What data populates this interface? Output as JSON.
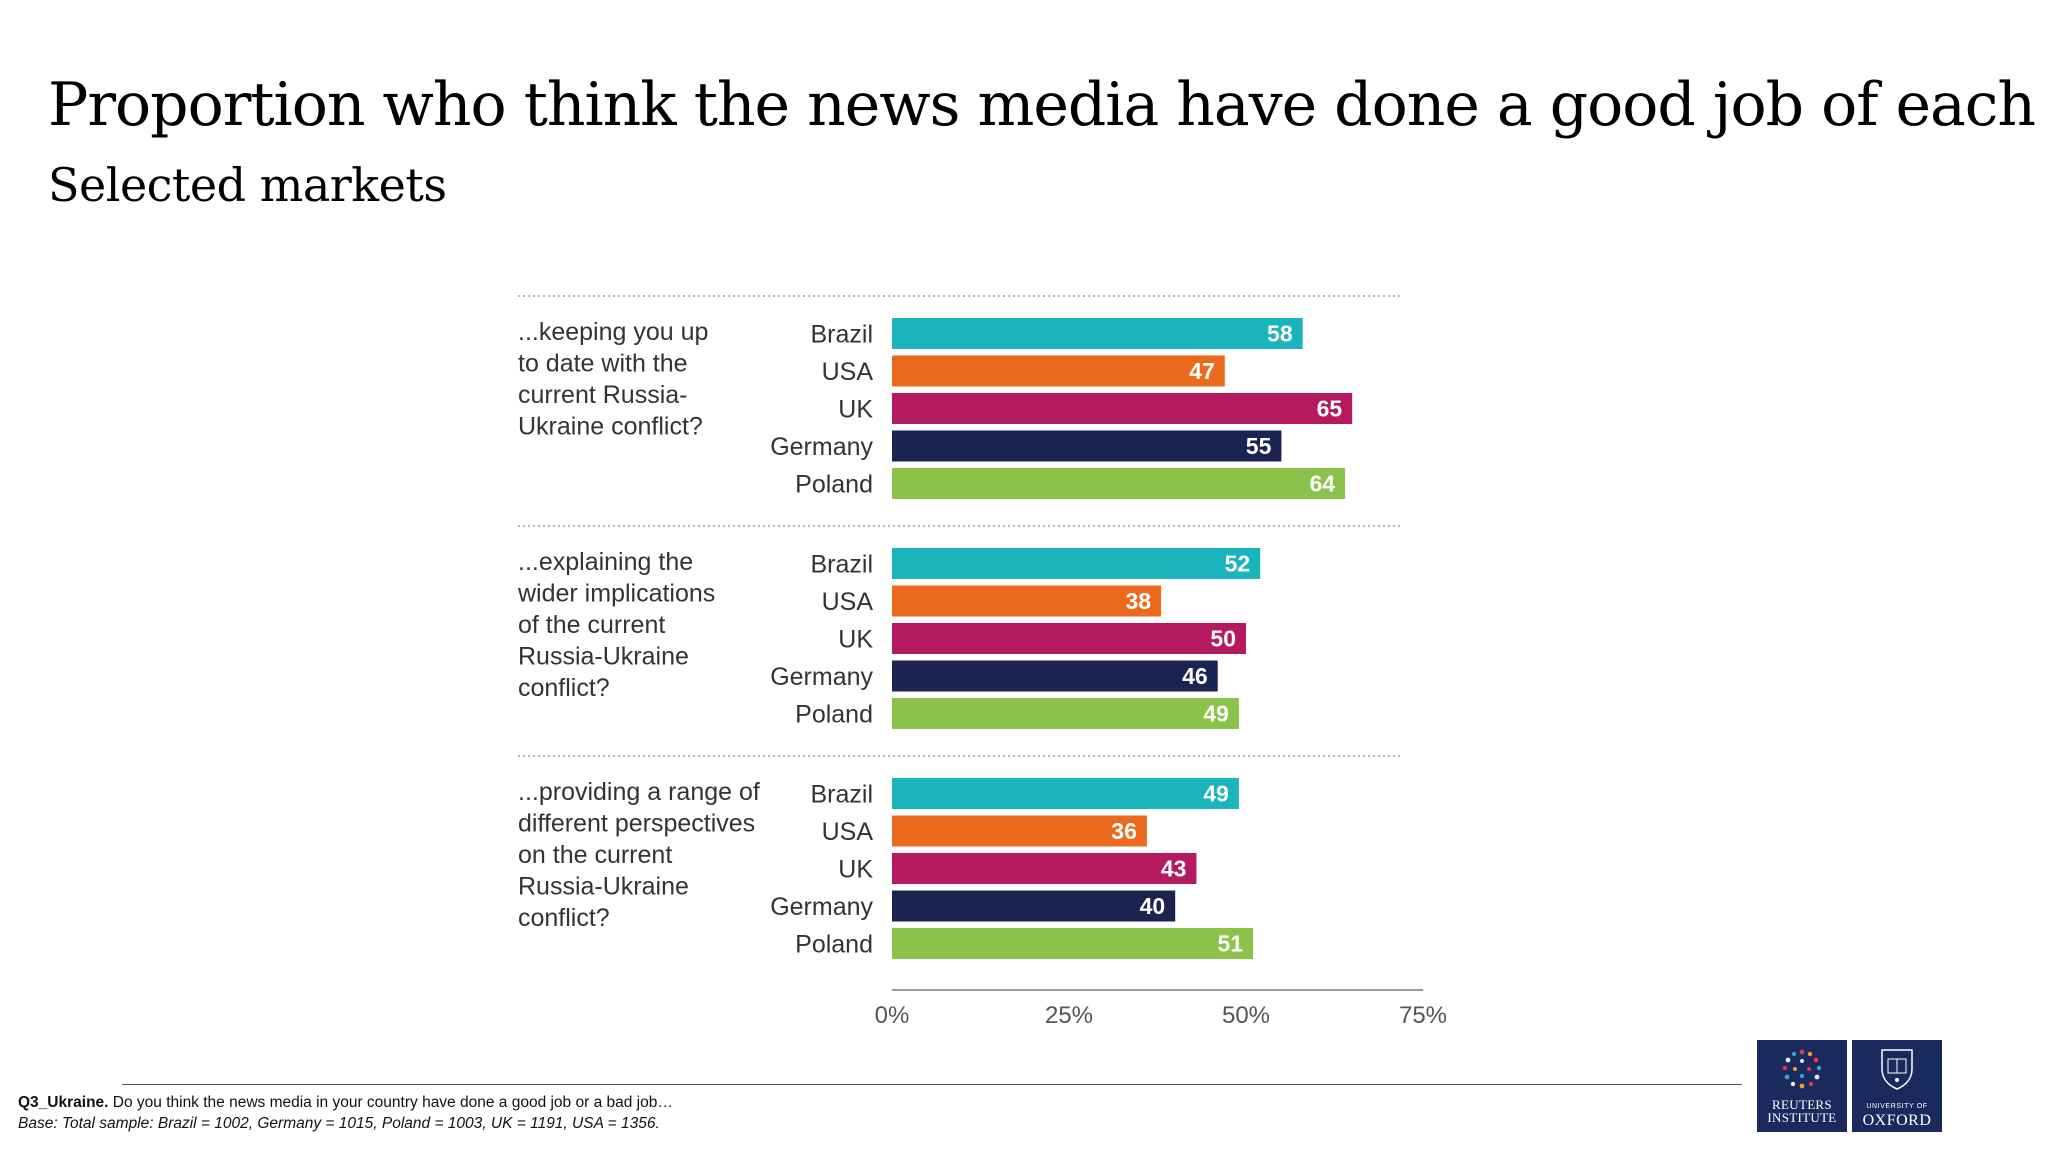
{
  "title": "Proportion who think the news media have done a good job of each",
  "subtitle": "Selected markets",
  "chart_data": {
    "type": "bar",
    "orientation": "horizontal",
    "categories": [
      "Brazil",
      "USA",
      "UK",
      "Germany",
      "Poland"
    ],
    "groups": [
      {
        "label": "...keeping you up to date with the current Russia-Ukraine conflict?",
        "label_lines": [
          "...keeping you up",
          "to date with the",
          "current Russia-",
          "Ukraine conflict?"
        ],
        "values": [
          58,
          47,
          65,
          55,
          64
        ]
      },
      {
        "label": "...explaining the wider implications of the current Russia-Ukraine conflict?",
        "label_lines": [
          "...explaining the",
          "wider implications",
          "of the current",
          "Russia-Ukraine",
          "conflict?"
        ],
        "values": [
          52,
          38,
          50,
          46,
          49
        ]
      },
      {
        "label": "...providing a range of different perspectives on the current Russia-Ukraine conflict?",
        "label_lines": [
          "...providing a range of",
          "different perspectives",
          "on the current",
          "Russia-Ukraine",
          "conflict?"
        ],
        "values": [
          49,
          36,
          43,
          40,
          51
        ]
      }
    ],
    "colors": [
      "#1bb3bc",
      "#ec6a1e",
      "#b5195f",
      "#1b2350",
      "#8bc34a"
    ],
    "xlim": [
      0,
      75
    ],
    "xticks": [
      0,
      25,
      50,
      75
    ],
    "xtick_labels": [
      "0%",
      "25%",
      "50%",
      "75%"
    ],
    "grid": false,
    "legend": "none"
  },
  "footnote": {
    "question_id": "Q3_Ukraine.",
    "question": " Do you think the news media in your country have done a good job or a bad job…",
    "base": "Base: Total sample: Brazil = 1002, Germany = 1015, Poland = 1003, UK = 1191, USA = 1356."
  },
  "logos": {
    "reuters_line1": "REUTERS",
    "reuters_line2": "INSTITUTE",
    "oxford_small": "UNIVERSITY OF",
    "oxford_big": "OXFORD"
  }
}
